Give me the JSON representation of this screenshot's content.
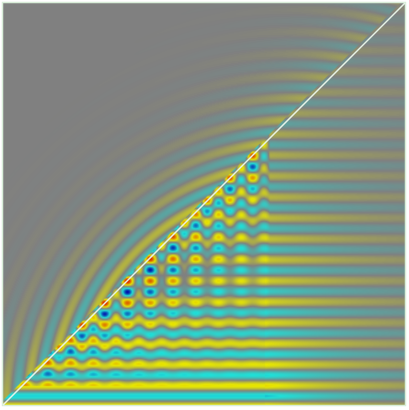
{
  "image": {
    "subject": "wave-interference-pattern",
    "colormap": [
      "#0000a8",
      "#1fe0d8",
      "#808080",
      "#e8e800",
      "#d83000"
    ],
    "background": "#808080",
    "frame_color": "#d9eed9",
    "diagonal_color": "#e8f4e8"
  }
}
